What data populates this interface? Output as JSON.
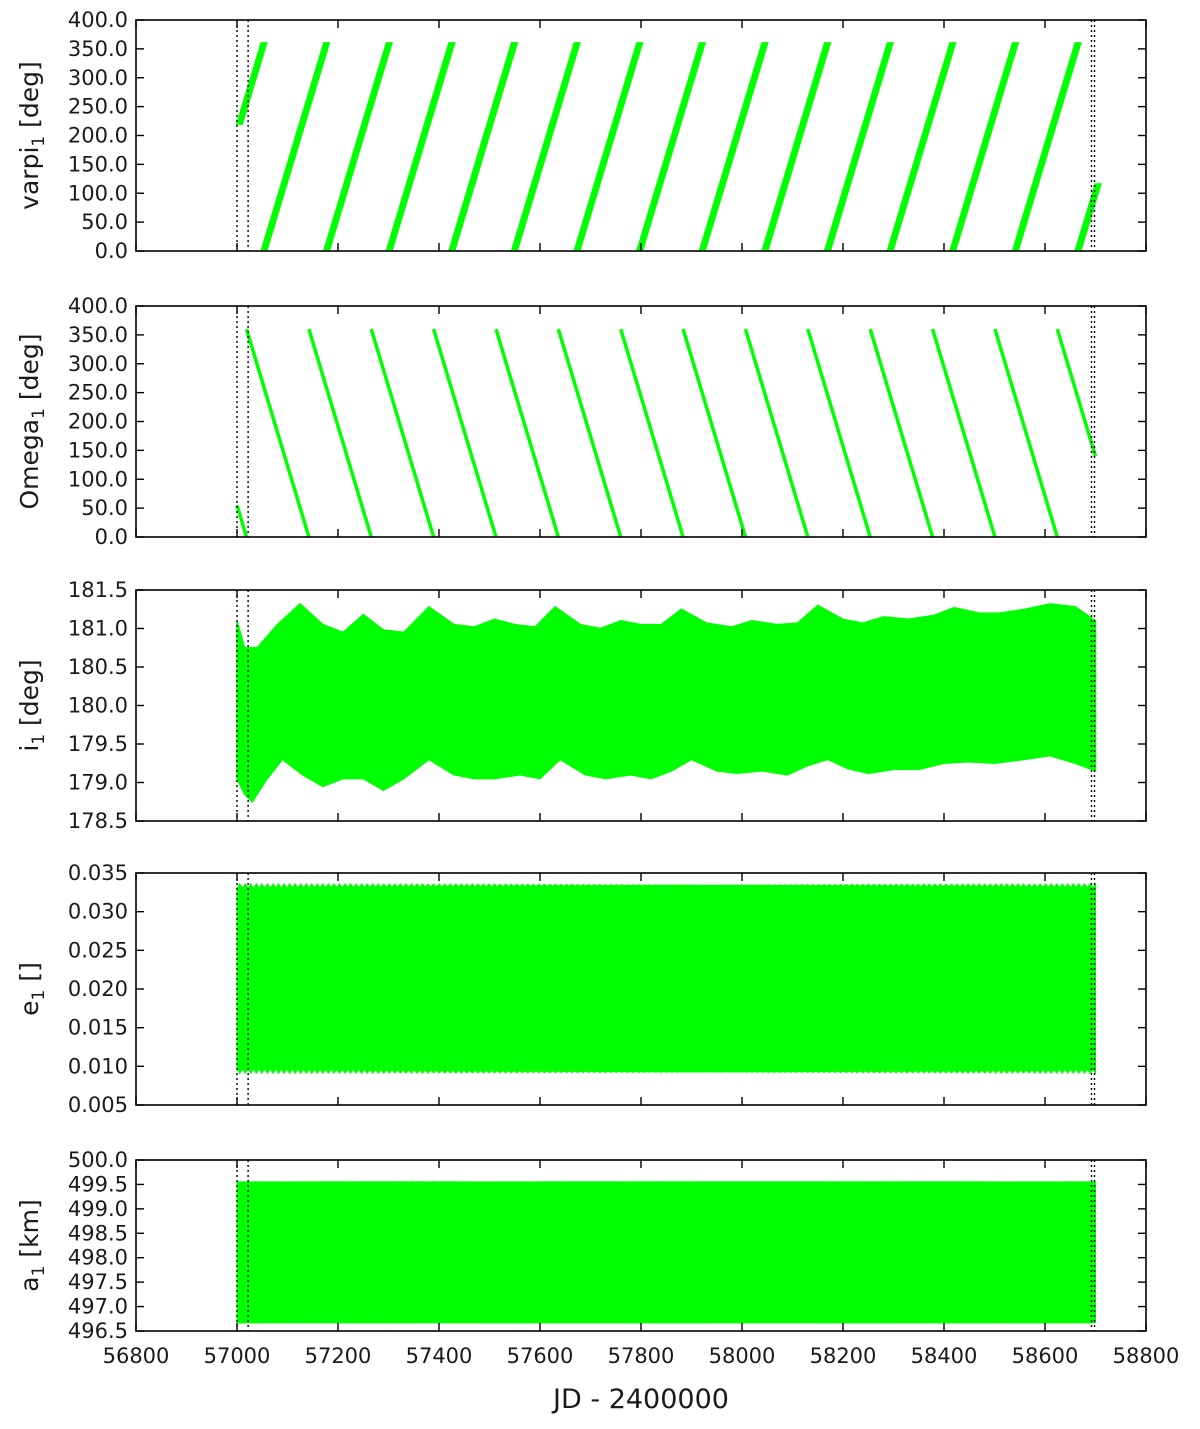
{
  "chart_data": {
    "type": "line",
    "series_color": "#00ff00",
    "xlabel": "JD - 2400000",
    "xlim": [
      56800,
      58800
    ],
    "x_ticks": [
      "56800",
      "57000",
      "57200",
      "57400",
      "57600",
      "57800",
      "58000",
      "58200",
      "58400",
      "58600",
      "58800"
    ],
    "x_tick_values": [
      56800,
      57000,
      57200,
      57400,
      57600,
      57800,
      58000,
      58200,
      58400,
      58600,
      58800
    ],
    "vertical_lines": [
      {
        "x": 57000,
        "style": "dotted"
      },
      {
        "x": 57022,
        "style": "dotted"
      },
      {
        "x": 58692,
        "style": "dotted"
      },
      {
        "x": 58698,
        "style": "dotted"
      }
    ],
    "panels": [
      {
        "id": "varpi",
        "ylabel_main": "varpi",
        "ylabel_sub": "1",
        "ylabel_unit": " [deg]",
        "ylim": [
          0,
          400
        ],
        "y_ticks": [
          "0.0",
          "50.0",
          "100.0",
          "150.0",
          "200.0",
          "250.0",
          "300.0",
          "350.0",
          "400.0"
        ],
        "y_tick_values": [
          0,
          50,
          100,
          150,
          200,
          250,
          300,
          350,
          400
        ],
        "kind": "sawtooth_up",
        "x_start": 57000,
        "x_end": 58700,
        "start_value": 220,
        "period": 124,
        "wrap_min": 0,
        "wrap_max": 360,
        "band_width_x": 10
      },
      {
        "id": "Omega",
        "ylabel_main": "Omega",
        "ylabel_sub": "1",
        "ylabel_unit": " [deg]",
        "ylim": [
          0,
          400
        ],
        "y_ticks": [
          "0.0",
          "50.0",
          "100.0",
          "150.0",
          "200.0",
          "250.0",
          "300.0",
          "350.0",
          "400.0"
        ],
        "y_tick_values": [
          0,
          50,
          100,
          150,
          200,
          250,
          300,
          350,
          400
        ],
        "kind": "sawtooth_down",
        "x_start": 57000,
        "x_end": 58700,
        "start_value": 55,
        "period": 123.5,
        "wrap_min": 0,
        "wrap_max": 360
      },
      {
        "id": "i",
        "ylabel_main": "i",
        "ylabel_sub": "1",
        "ylabel_unit": " [deg]",
        "ylim": [
          178.5,
          181.5
        ],
        "y_ticks": [
          "178.5",
          "179.0",
          "179.5",
          "180.0",
          "180.5",
          "181.0",
          "181.5"
        ],
        "y_tick_values": [
          178.5,
          179.0,
          179.5,
          180.0,
          180.5,
          181.0,
          181.5
        ],
        "kind": "band",
        "upper": [
          [
            57000,
            181.1
          ],
          [
            57015,
            180.75
          ],
          [
            57040,
            180.75
          ],
          [
            57080,
            181.05
          ],
          [
            57125,
            181.32
          ],
          [
            57170,
            181.05
          ],
          [
            57210,
            180.95
          ],
          [
            57250,
            181.18
          ],
          [
            57290,
            180.98
          ],
          [
            57330,
            180.95
          ],
          [
            57380,
            181.28
          ],
          [
            57430,
            181.05
          ],
          [
            57470,
            181.02
          ],
          [
            57510,
            181.12
          ],
          [
            57550,
            181.05
          ],
          [
            57590,
            181.02
          ],
          [
            57630,
            181.28
          ],
          [
            57680,
            181.05
          ],
          [
            57720,
            181.0
          ],
          [
            57760,
            181.1
          ],
          [
            57800,
            181.05
          ],
          [
            57840,
            181.05
          ],
          [
            57880,
            181.25
          ],
          [
            57930,
            181.07
          ],
          [
            57980,
            181.02
          ],
          [
            58020,
            181.1
          ],
          [
            58070,
            181.05
          ],
          [
            58110,
            181.07
          ],
          [
            58150,
            181.3
          ],
          [
            58200,
            181.12
          ],
          [
            58240,
            181.07
          ],
          [
            58280,
            181.15
          ],
          [
            58330,
            181.12
          ],
          [
            58380,
            181.17
          ],
          [
            58420,
            181.27
          ],
          [
            58470,
            181.2
          ],
          [
            58510,
            181.2
          ],
          [
            58560,
            181.25
          ],
          [
            58610,
            181.32
          ],
          [
            58660,
            181.28
          ],
          [
            58700,
            181.1
          ]
        ],
        "lower": [
          [
            57000,
            179.05
          ],
          [
            57015,
            178.85
          ],
          [
            57030,
            178.75
          ],
          [
            57060,
            179.05
          ],
          [
            57090,
            179.3
          ],
          [
            57130,
            179.1
          ],
          [
            57170,
            178.95
          ],
          [
            57210,
            179.05
          ],
          [
            57250,
            179.05
          ],
          [
            57290,
            178.9
          ],
          [
            57330,
            179.05
          ],
          [
            57380,
            179.3
          ],
          [
            57430,
            179.1
          ],
          [
            57470,
            179.05
          ],
          [
            57510,
            179.05
          ],
          [
            57560,
            179.1
          ],
          [
            57600,
            179.05
          ],
          [
            57640,
            179.3
          ],
          [
            57690,
            179.1
          ],
          [
            57730,
            179.05
          ],
          [
            57780,
            179.1
          ],
          [
            57820,
            179.05
          ],
          [
            57860,
            179.15
          ],
          [
            57900,
            179.3
          ],
          [
            57950,
            179.15
          ],
          [
            57990,
            179.12
          ],
          [
            58040,
            179.15
          ],
          [
            58090,
            179.1
          ],
          [
            58130,
            179.22
          ],
          [
            58170,
            179.3
          ],
          [
            58210,
            179.18
          ],
          [
            58250,
            179.12
          ],
          [
            58300,
            179.17
          ],
          [
            58350,
            179.17
          ],
          [
            58400,
            179.25
          ],
          [
            58450,
            179.27
          ],
          [
            58500,
            179.25
          ],
          [
            58560,
            179.3
          ],
          [
            58610,
            179.35
          ],
          [
            58660,
            179.25
          ],
          [
            58700,
            179.15
          ]
        ]
      },
      {
        "id": "e",
        "ylabel_main": "e",
        "ylabel_sub": "1",
        "ylabel_unit": " []",
        "ylim": [
          0.005,
          0.035
        ],
        "y_ticks": [
          "0.005",
          "0.010",
          "0.015",
          "0.020",
          "0.025",
          "0.030",
          "0.035"
        ],
        "y_tick_values": [
          0.005,
          0.01,
          0.015,
          0.02,
          0.025,
          0.03,
          0.035
        ],
        "kind": "band_const",
        "x_start": 57000,
        "x_end": 58700,
        "upper_value": 0.0336,
        "lower_value": 0.0091,
        "ripple": 0.0006,
        "ripple_period": 22
      },
      {
        "id": "a",
        "ylabel_main": "a",
        "ylabel_sub": "1",
        "ylabel_unit": " [km]",
        "ylim": [
          496.5,
          500.0
        ],
        "y_ticks": [
          "496.5",
          "497.0",
          "497.5",
          "498.0",
          "498.5",
          "499.0",
          "499.5",
          "500.0"
        ],
        "y_tick_values": [
          496.5,
          497.0,
          497.5,
          498.0,
          498.5,
          499.0,
          499.5,
          500.0
        ],
        "kind": "band_const",
        "x_start": 57000,
        "x_end": 58700,
        "upper_value": 499.56,
        "lower_value": 496.66,
        "ripple": 0.02,
        "ripple_period": 11
      }
    ]
  }
}
